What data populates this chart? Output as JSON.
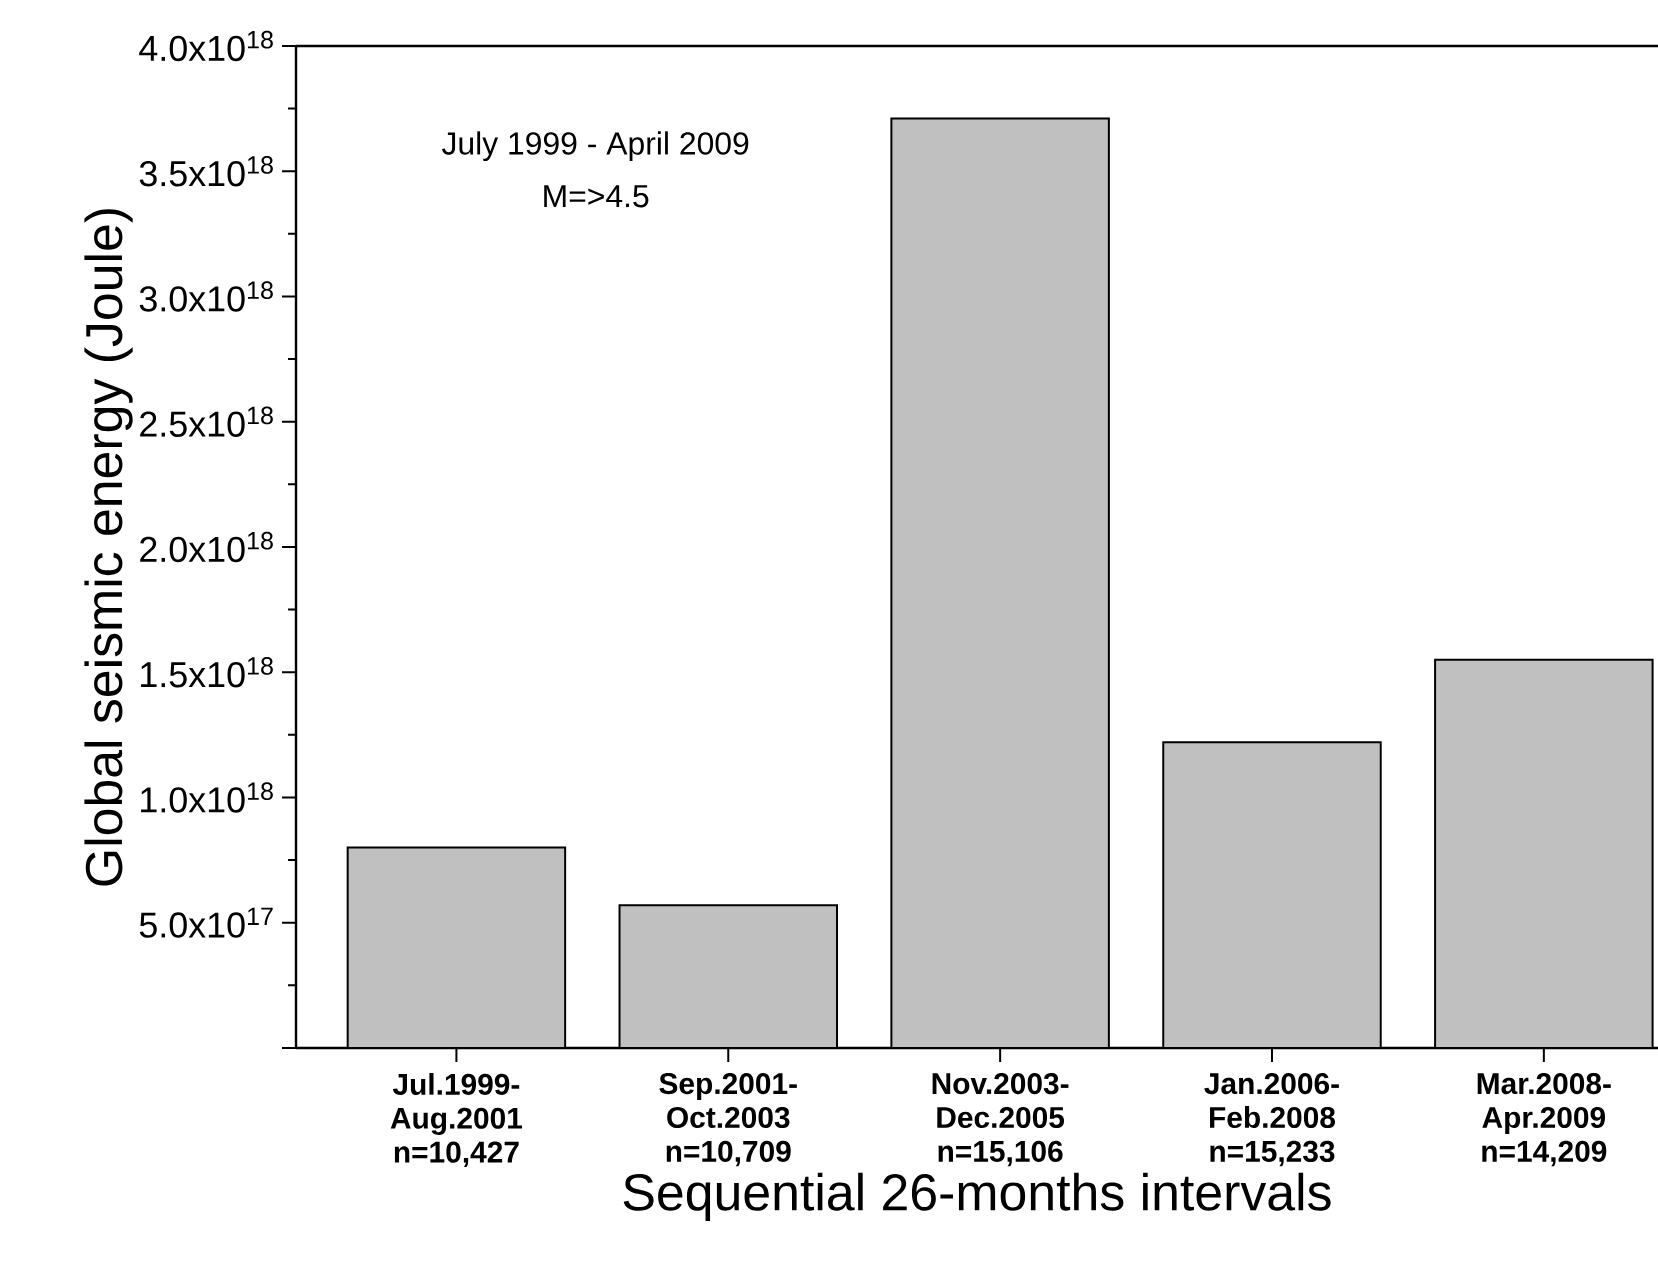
{
  "chart_data": {
    "type": "bar",
    "xlabel": "Sequential 26-months intervals",
    "ylabel": "Global seismic energy (Joule)",
    "annotations": [
      "July 1999 - April 2009",
      "M=>4.5"
    ],
    "categories": [
      "Jul.1999- Aug.2001 n=10,427",
      "Sep.2001- Oct.2003 n=10,709",
      "Nov.2003- Dec.2005 n=15,106",
      "Jan.2006- Feb.2008 n=15,233",
      "Mar.2008- Apr.2009 n=14,209"
    ],
    "values": [
      8e+17,
      5.7e+17,
      3.71e+18,
      1.22e+18,
      1.55e+18
    ],
    "color": "#c0c0c0",
    "ylim": [
      0,
      4e+18
    ],
    "yticks": [
      {
        "value": 0,
        "label": null
      },
      {
        "value": 5e+17,
        "label": "5.0x10$^{17}$"
      },
      {
        "value": 1e+18,
        "label": "1.0x10$^{18}$"
      },
      {
        "value": 1.5e+18,
        "label": "1.5x10$^{18}$"
      },
      {
        "value": 2e+18,
        "label": "2.0x10$^{18}$"
      },
      {
        "value": 2.5e+18,
        "label": "2.5x10$^{18}$"
      },
      {
        "value": 3e+18,
        "label": "3.0x10$^{18}$"
      },
      {
        "value": 3.5e+18,
        "label": "3.5x10$^{18}$"
      },
      {
        "value": 4e+18,
        "label": "4.0x10$^{18}$"
      }
    ],
    "grid": false
  }
}
